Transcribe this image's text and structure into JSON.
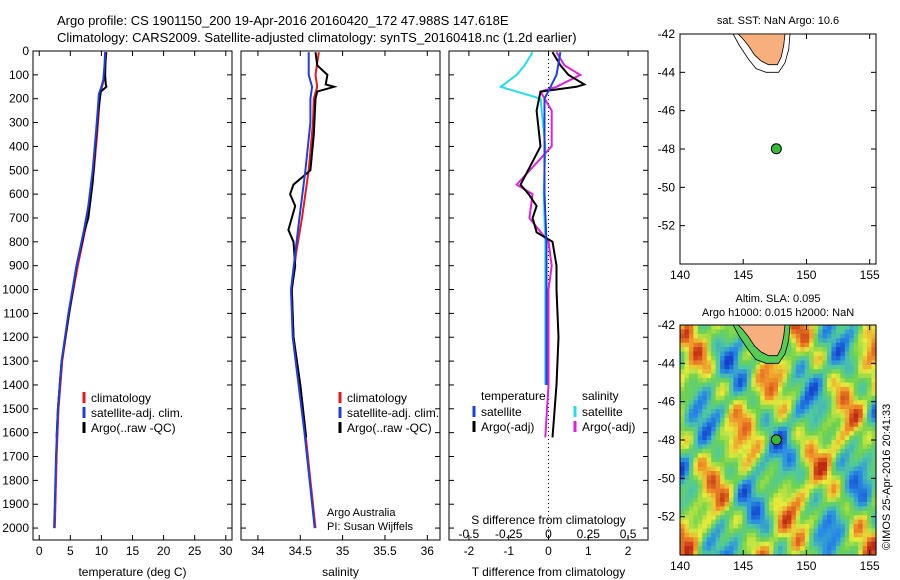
{
  "header": {
    "line1": "Argo profile: CS 1901150_200 19-Apr-2016 20160420_172 47.988S 147.618E",
    "line2": "Climatology: CARS2009. Satellite-adjusted climatology: synTS_20160418.nc (1.2d earlier)"
  },
  "colors": {
    "climatology": "#e41a1c",
    "satellite": "#1f3ee0",
    "argo": "#000000",
    "salinity_sat": "#22ddee",
    "salinity_argo": "#dd22dd",
    "land": "#f7b07d",
    "float_marker": "#33bb33"
  },
  "chart_data": [
    {
      "type": "line",
      "name": "temperature_profile",
      "xlabel": "temperature (deg C)",
      "xlim": [
        -1,
        31
      ],
      "ylim": [
        0,
        2050
      ],
      "xticks": [
        0,
        5,
        10,
        15,
        20,
        25,
        30
      ],
      "yticks": [
        0,
        100,
        200,
        300,
        400,
        500,
        600,
        700,
        800,
        900,
        1000,
        1100,
        1200,
        1300,
        1400,
        1500,
        1600,
        1700,
        1800,
        1900,
        2000
      ],
      "legend": [
        "climatology",
        "satellite-adj. clim.",
        "Argo(..raw -QC)"
      ],
      "series": [
        {
          "name": "climatology",
          "depth": [
            5,
            60,
            120,
            150,
            180,
            250,
            350,
            500,
            650,
            750,
            900,
            1100,
            1300,
            1500,
            1700,
            1900,
            2000
          ],
          "values": [
            10.8,
            10.6,
            10.4,
            10.1,
            9.8,
            9.6,
            9.3,
            8.8,
            8.1,
            7.4,
            6.2,
            4.8,
            3.7,
            3.1,
            2.8,
            2.6,
            2.5
          ]
        },
        {
          "name": "satellite-adj. clim.",
          "depth": [
            5,
            60,
            120,
            150,
            180,
            250,
            350,
            500,
            650,
            750,
            900,
            1100,
            1300,
            1500,
            1700,
            1900,
            2000
          ],
          "values": [
            10.6,
            10.5,
            10.3,
            10.0,
            9.6,
            9.4,
            9.1,
            8.6,
            7.9,
            7.2,
            6.0,
            4.7,
            3.6,
            3.0,
            2.7,
            2.5,
            2.4
          ]
        },
        {
          "name": "Argo(..raw -QC)",
          "depth": [
            5,
            100,
            140,
            150,
            170,
            250,
            400,
            550,
            700,
            760,
            800,
            900,
            1100,
            1300,
            1500,
            1620
          ],
          "values": [
            10.7,
            10.6,
            10.7,
            10.8,
            9.9,
            9.5,
            9.0,
            8.6,
            7.9,
            7.2,
            6.9,
            6.0,
            4.8,
            3.6,
            3.0,
            2.8
          ]
        }
      ]
    },
    {
      "type": "line",
      "name": "salinity_profile",
      "xlabel": "salinity",
      "xlim": [
        33.8,
        36.15
      ],
      "ylim": [
        0,
        2050
      ],
      "xticks": [
        34,
        34.5,
        35,
        35.5,
        36
      ],
      "legend": [
        "climatology",
        "satellite-adj. clim.",
        "Argo(..raw -QC)"
      ],
      "annotation": [
        "Argo Australia",
        "PI: Susan Wijffels"
      ],
      "series": [
        {
          "name": "climatology",
          "depth": [
            5,
            50,
            100,
            150,
            200,
            300,
            500,
            700,
            850,
            1000,
            1200,
            1400,
            1600,
            1800,
            2000
          ],
          "values": [
            34.72,
            34.7,
            34.68,
            34.7,
            34.66,
            34.65,
            34.6,
            34.52,
            34.45,
            34.4,
            34.42,
            34.5,
            34.56,
            34.62,
            34.68
          ]
        },
        {
          "name": "satellite-adj. clim.",
          "depth": [
            5,
            50,
            100,
            150,
            200,
            300,
            500,
            700,
            850,
            1000,
            1200,
            1400,
            1600,
            1800,
            2000
          ],
          "values": [
            34.6,
            34.6,
            34.6,
            34.64,
            34.62,
            34.62,
            34.56,
            34.49,
            34.44,
            34.39,
            34.41,
            34.48,
            34.55,
            34.61,
            34.67
          ]
        },
        {
          "name": "Argo(..raw -QC)",
          "depth": [
            5,
            60,
            100,
            140,
            150,
            170,
            200,
            350,
            500,
            560,
            600,
            650,
            700,
            750,
            800,
            900,
            1000,
            1200,
            1400,
            1620
          ],
          "values": [
            34.68,
            34.7,
            34.82,
            34.8,
            34.9,
            34.7,
            34.68,
            34.66,
            34.62,
            34.42,
            34.38,
            34.44,
            34.4,
            34.36,
            34.42,
            34.44,
            34.4,
            34.42,
            34.5,
            34.57
          ]
        }
      ]
    },
    {
      "type": "line",
      "name": "difference_profile",
      "xlabel": "T difference from climatology",
      "xlabel_top": "S difference from climatology",
      "xlim": [
        -2.5,
        2.5
      ],
      "ylim": [
        0,
        2050
      ],
      "xticks": [
        -2,
        -1,
        0,
        1,
        2
      ],
      "xticks_top": [
        "-0.5",
        "-0.25",
        "0",
        "0.25",
        "0.5"
      ],
      "legend_temperature": {
        "title": "temperature",
        "items": [
          "satellite",
          "Argo(-adj)"
        ]
      },
      "legend_salinity": {
        "title": "salinity",
        "items": [
          "satellite",
          "Argo(-adj)"
        ]
      },
      "series": [
        {
          "name": "temperature satellite",
          "depth": [
            5,
            100,
            200,
            400,
            600,
            800,
            1000,
            1200,
            1400
          ],
          "values": [
            0.3,
            0.2,
            -0.1,
            -0.1,
            -0.1,
            -0.05,
            -0.05,
            -0.05,
            -0.05
          ]
        },
        {
          "name": "temperature Argo(-adj)",
          "depth": [
            5,
            60,
            100,
            140,
            150,
            170,
            250,
            400,
            560,
            600,
            650,
            700,
            760,
            800,
            900,
            1000,
            1200,
            1400,
            1620
          ],
          "values": [
            0.1,
            0.3,
            0.5,
            0.9,
            0.7,
            -0.2,
            -0.3,
            -0.2,
            -0.7,
            -0.5,
            -0.3,
            -0.4,
            -0.3,
            0.1,
            0.2,
            0.2,
            0.25,
            0.2,
            0.1
          ]
        },
        {
          "name": "salinity satellite",
          "depth": [
            5,
            60,
            100,
            150,
            200,
            400,
            600,
            800,
            1000,
            1200,
            1400
          ],
          "values": [
            -0.1,
            -0.15,
            -0.2,
            -0.3,
            -0.05,
            -0.02,
            -0.03,
            -0.02,
            -0.02,
            -0.02,
            -0.02
          ]
        },
        {
          "name": "salinity Argo(-adj)",
          "depth": [
            5,
            60,
            100,
            150,
            170,
            250,
            400,
            560,
            600,
            700,
            750,
            800,
            900,
            1000,
            1200,
            1400,
            1620
          ],
          "values": [
            0.05,
            0.1,
            0.2,
            0.05,
            -0.05,
            0.02,
            0.02,
            -0.2,
            -0.1,
            -0.12,
            -0.06,
            0.0,
            0.02,
            0.0,
            0.0,
            0.0,
            -0.02
          ]
        }
      ]
    },
    {
      "type": "map",
      "name": "sst_map",
      "title": "sat. SST: NaN Argo: 10.6",
      "xlim": [
        140,
        155.5
      ],
      "ylim": [
        -54,
        -42
      ],
      "xticks": [
        140,
        145,
        150,
        155
      ],
      "yticks": [
        -42,
        -44,
        -46,
        -48,
        -50,
        -52
      ],
      "float_position": [
        147.618,
        -47.988
      ]
    },
    {
      "type": "heatmap",
      "name": "sla_map",
      "title_line1": "Altim. SLA: 0.095",
      "title_line2": "Argo h1000: 0.015 h2000: NaN",
      "xlim": [
        140,
        155.5
      ],
      "ylim": [
        -54,
        -42
      ],
      "xticks": [
        140,
        145,
        150,
        155
      ],
      "yticks": [
        -42,
        -44,
        -46,
        -48,
        -50,
        -52
      ],
      "float_position": [
        147.618,
        -47.988
      ]
    }
  ],
  "credit": "©IMOS 25-Apr-2016 20:41:33"
}
